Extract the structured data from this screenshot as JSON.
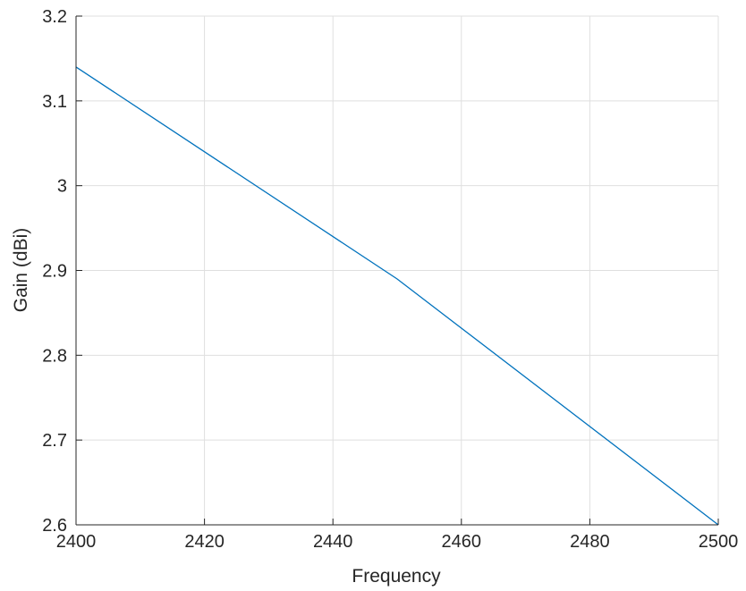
{
  "chart_data": {
    "type": "line",
    "title": "",
    "xlabel": "Frequency",
    "ylabel": "Gain (dBi)",
    "xlim": [
      2400,
      2500
    ],
    "ylim": [
      2.6,
      3.2
    ],
    "xticks": [
      2400,
      2420,
      2440,
      2460,
      2480,
      2500
    ],
    "yticks": [
      2.6,
      2.7,
      2.8,
      2.9,
      3.0,
      3.1,
      3.2
    ],
    "xtick_labels": [
      "2400",
      "2420",
      "2440",
      "2460",
      "2480",
      "2500"
    ],
    "ytick_labels": [
      "2.6",
      "2.7",
      "2.8",
      "2.9",
      "3",
      "3.1",
      "3.2"
    ],
    "grid": true,
    "legend": "none",
    "series": [
      {
        "color": "#0072bd",
        "x": [
          2400,
          2450,
          2500
        ],
        "y": [
          3.14,
          2.89,
          2.6
        ]
      }
    ]
  }
}
